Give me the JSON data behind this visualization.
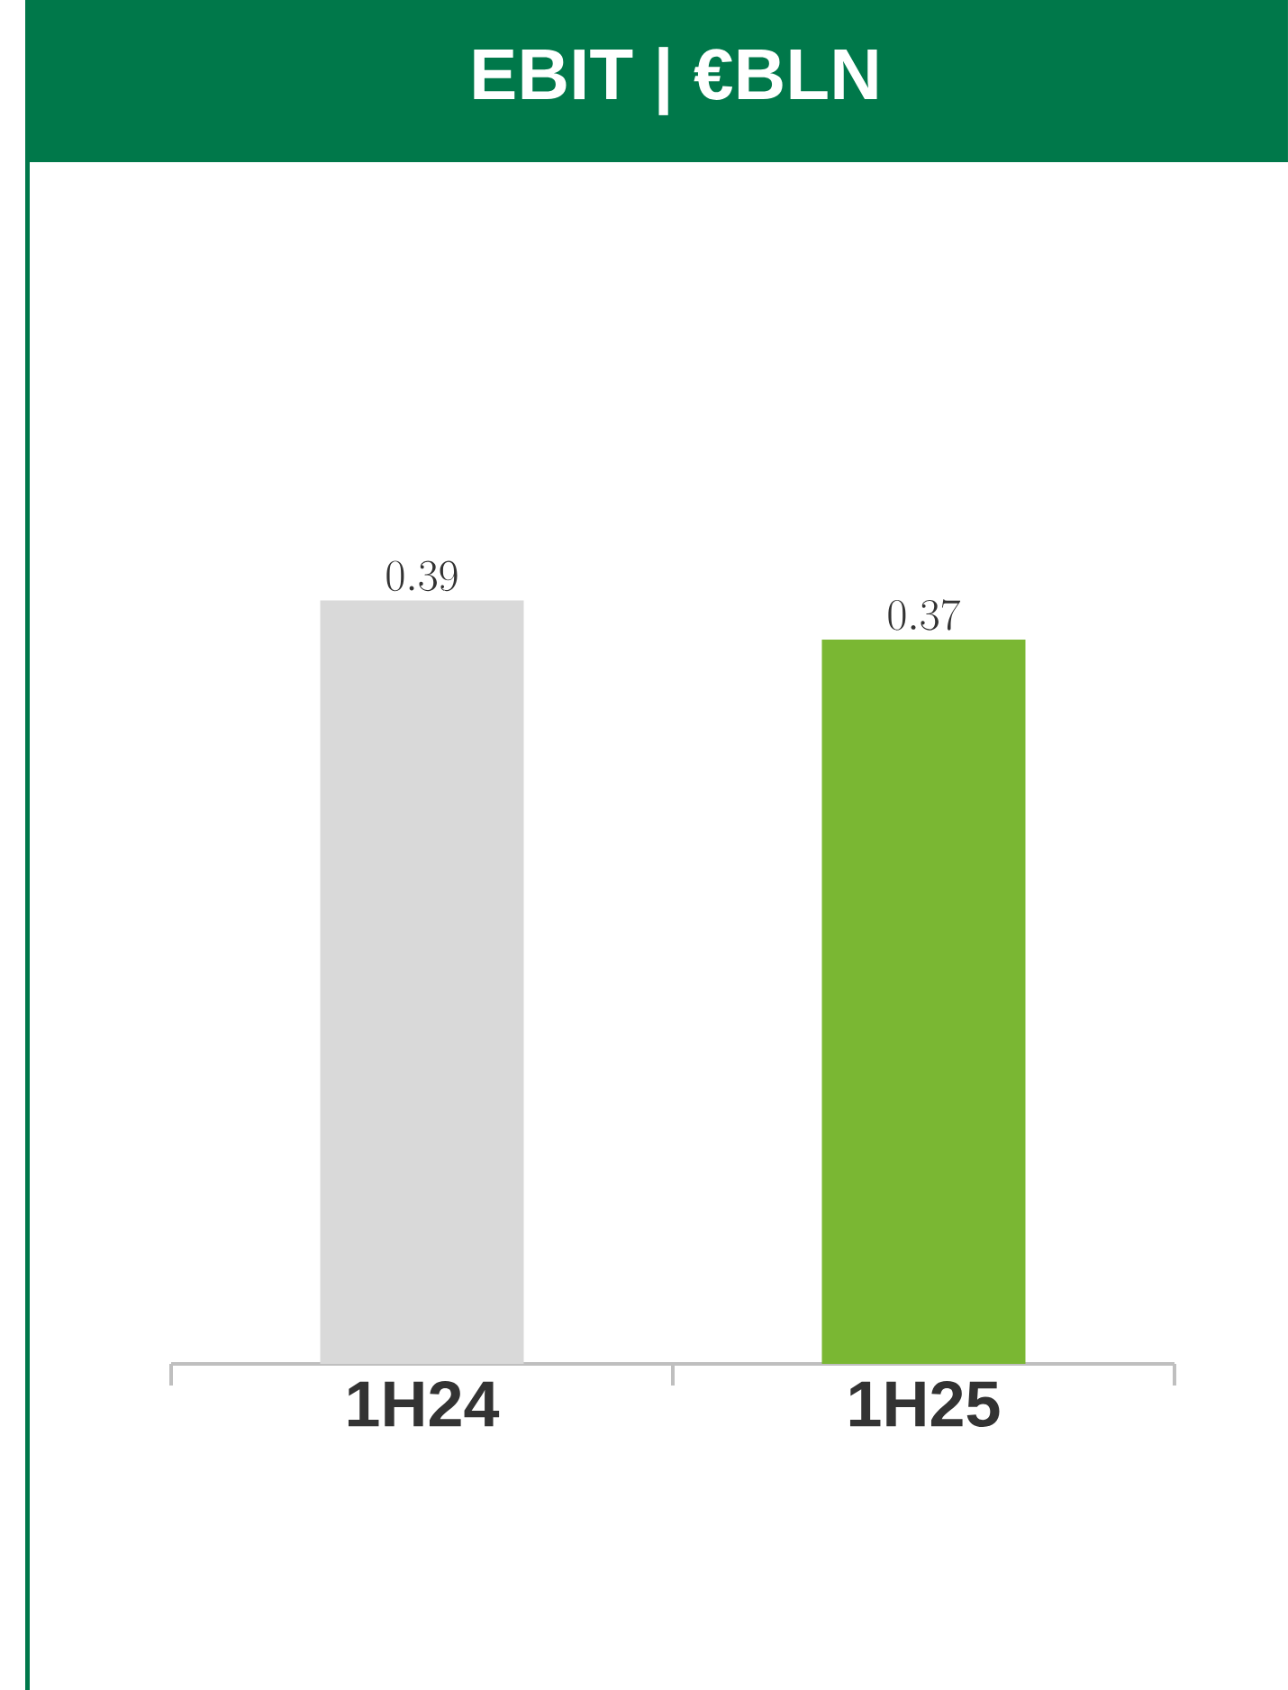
{
  "chart_data": {
    "type": "bar",
    "title": "EBIT | €BLN",
    "categories": [
      "1H24",
      "1H25"
    ],
    "values": [
      0.39,
      0.37
    ],
    "colors": [
      "#d9d9d9",
      "#7ab733"
    ],
    "data_labels": true
  }
}
